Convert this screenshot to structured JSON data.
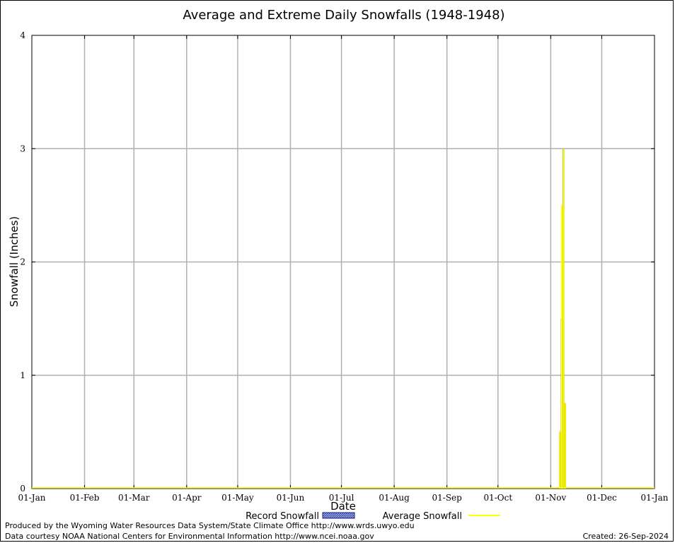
{
  "chart_data": {
    "type": "bar",
    "title": "Average and Extreme Daily Snowfalls (1948-1948)",
    "xlabel": "Date",
    "ylabel": "Snowfall (Inches)",
    "ylim": [
      0,
      4
    ],
    "y_ticks": [
      "0",
      "1",
      "2",
      "3",
      "4"
    ],
    "x_ticks": [
      "01-Jan",
      "01-Feb",
      "01-Mar",
      "01-Apr",
      "01-May",
      "01-Jun",
      "01-Jul",
      "01-Aug",
      "01-Sep",
      "01-Oct",
      "01-Nov",
      "01-Dec",
      "01-Jan"
    ],
    "grid": true,
    "legend_placement": "bottom",
    "series": [
      {
        "name": "Record Snowfall",
        "color": "#1a237e",
        "points": [
          {
            "date": "1948-11-06",
            "value": 0.5
          },
          {
            "date": "1948-11-07",
            "value": 1.5
          },
          {
            "date": "1948-11-08",
            "value": 3.0
          },
          {
            "date": "1948-11-09",
            "value": 0.75
          }
        ]
      },
      {
        "name": "Average Snowfall",
        "color": "#ffff00",
        "points": [
          {
            "date": "1948-11-06",
            "value": 0.5
          },
          {
            "date": "1948-11-07",
            "value": 2.5
          },
          {
            "date": "1948-11-08",
            "value": 3.0
          },
          {
            "date": "1948-11-09",
            "value": 0.75
          }
        ]
      }
    ]
  },
  "footer": {
    "producer": "Produced by the Wyoming Water Resources Data System/State Climate Office http://www.wrds.uwyo.edu",
    "courtesy": "Data courtesy NOAA National Centers for Environmental Information http://www.ncei.noaa.gov",
    "created": "Created: 26-Sep-2024"
  }
}
